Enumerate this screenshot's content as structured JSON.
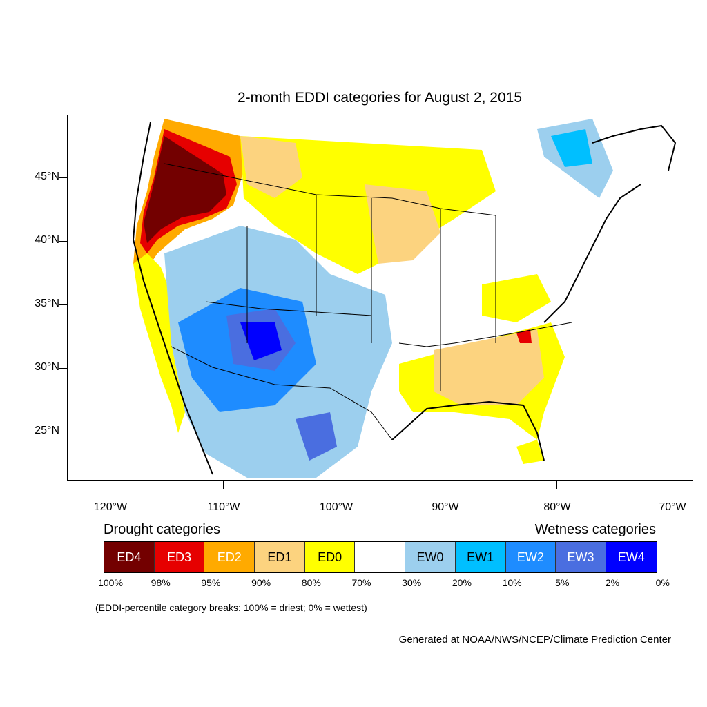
{
  "title": "2-month EDDI categories for August 2, 2015",
  "map": {
    "lat_labels": [
      "45°N",
      "40°N",
      "35°N",
      "30°N",
      "25°N"
    ],
    "lon_labels": [
      "120°W",
      "110°W",
      "100°W",
      "90°W",
      "80°W",
      "70°W"
    ]
  },
  "legend": {
    "drought_heading": "Drought categories",
    "wetness_heading": "Wetness categories",
    "categories": [
      {
        "label": "ED4",
        "color": "#730000",
        "text_color": "#ffffff"
      },
      {
        "label": "ED3",
        "color": "#e60000",
        "text_color": "#ffffff"
      },
      {
        "label": "ED2",
        "color": "#ffaa00",
        "text_color": "#ffffff"
      },
      {
        "label": "ED1",
        "color": "#fcd37f",
        "text_color": "#000000"
      },
      {
        "label": "ED0",
        "color": "#ffff00",
        "text_color": "#000000"
      },
      {
        "label": "",
        "color": "#ffffff",
        "text_color": "#000000"
      },
      {
        "label": "EW0",
        "color": "#9ccfee",
        "text_color": "#000000"
      },
      {
        "label": "EW1",
        "color": "#00bfff",
        "text_color": "#000000"
      },
      {
        "label": "EW2",
        "color": "#1e8cff",
        "text_color": "#ffffff"
      },
      {
        "label": "EW3",
        "color": "#4a6ee0",
        "text_color": "#ffffff"
      },
      {
        "label": "EW4",
        "color": "#0000ff",
        "text_color": "#ffffff"
      }
    ],
    "breaks": [
      "100%",
      "98%",
      "95%",
      "90%",
      "80%",
      "70%",
      "30%",
      "20%",
      "10%",
      "5%",
      "2%",
      "0%"
    ]
  },
  "note": "(EDDI-percentile category breaks: 100% = driest; 0% = wettest)",
  "credit": "Generated at NOAA/NWS/NCEP/Climate Prediction Center"
}
